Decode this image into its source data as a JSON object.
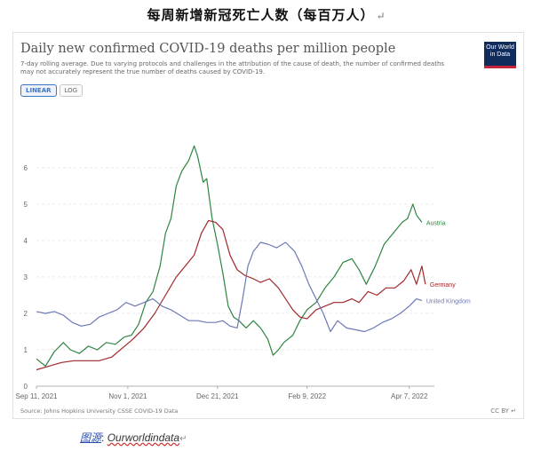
{
  "document": {
    "title": "每周新增新冠死亡人数（每百万人）",
    "return_mark": "↵",
    "caption_label": "图源",
    "caption_sep": ": ",
    "caption_source": "Ourworldindata",
    "caption_return": "↵"
  },
  "figure": {
    "logo_line1": "Our World",
    "logo_line2": "in Data",
    "tabs": [
      "LINEAR",
      "LOG"
    ],
    "active_tab": "LINEAR",
    "source": "Source: Johns Hopkins University CSSE COVID-19 Data",
    "license": "CC BY",
    "license_return": "↵"
  },
  "chart_data": {
    "type": "line",
    "title": "Daily new confirmed COVID-19 deaths per million people",
    "subtitle": "7-day rolling average. Due to varying protocols and challenges in the attribution of the cause of death, the number of confirmed deaths may not accurately represent the true number of deaths caused by COVID-19.",
    "xlabel": "",
    "ylabel": "",
    "x_range": [
      "2021-09-11",
      "2022-04-21"
    ],
    "ylim": [
      0,
      6.9
    ],
    "y_ticks": [
      0,
      1,
      2,
      3,
      4,
      5,
      6
    ],
    "x_ticks": [
      {
        "date": "2021-09-11",
        "label": "Sep 11, 2021"
      },
      {
        "date": "2021-11-01",
        "label": "Nov 1, 2021"
      },
      {
        "date": "2021-12-21",
        "label": "Dec 21, 2021"
      },
      {
        "date": "2022-02-09",
        "label": "Feb 9, 2022"
      },
      {
        "date": "2022-04-07",
        "label": "Apr 7, 2022"
      }
    ],
    "grid": "horizontal dashed",
    "legend": "inline labels at line ends",
    "series": [
      {
        "name": "Austria",
        "color": "#2e8540",
        "points": [
          [
            "2021-09-11",
            0.75
          ],
          [
            "2021-09-16",
            0.55
          ],
          [
            "2021-09-21",
            0.95
          ],
          [
            "2021-09-26",
            1.2
          ],
          [
            "2021-09-30",
            1.0
          ],
          [
            "2021-10-05",
            0.9
          ],
          [
            "2021-10-10",
            1.1
          ],
          [
            "2021-10-15",
            1.0
          ],
          [
            "2021-10-20",
            1.2
          ],
          [
            "2021-10-25",
            1.15
          ],
          [
            "2021-10-30",
            1.35
          ],
          [
            "2021-11-03",
            1.4
          ],
          [
            "2021-11-07",
            1.7
          ],
          [
            "2021-11-11",
            2.3
          ],
          [
            "2021-11-15",
            2.6
          ],
          [
            "2021-11-19",
            3.3
          ],
          [
            "2021-11-22",
            4.2
          ],
          [
            "2021-11-25",
            4.6
          ],
          [
            "2021-11-28",
            5.5
          ],
          [
            "2021-12-01",
            5.9
          ],
          [
            "2021-12-05",
            6.2
          ],
          [
            "2021-12-08",
            6.6
          ],
          [
            "2021-12-10",
            6.3
          ],
          [
            "2021-12-13",
            5.6
          ],
          [
            "2021-12-15",
            5.7
          ],
          [
            "2021-12-18",
            4.6
          ],
          [
            "2021-12-21",
            3.9
          ],
          [
            "2021-12-24",
            3.1
          ],
          [
            "2021-12-27",
            2.2
          ],
          [
            "2021-12-30",
            1.9
          ],
          [
            "2022-01-02",
            1.8
          ],
          [
            "2022-01-06",
            1.6
          ],
          [
            "2022-01-10",
            1.8
          ],
          [
            "2022-01-14",
            1.6
          ],
          [
            "2022-01-18",
            1.3
          ],
          [
            "2022-01-21",
            0.85
          ],
          [
            "2022-01-24",
            1.0
          ],
          [
            "2022-01-27",
            1.2
          ],
          [
            "2022-02-01",
            1.4
          ],
          [
            "2022-02-05",
            1.8
          ],
          [
            "2022-02-09",
            2.1
          ],
          [
            "2022-02-14",
            2.3
          ],
          [
            "2022-02-19",
            2.7
          ],
          [
            "2022-02-24",
            3.0
          ],
          [
            "2022-03-01",
            3.4
          ],
          [
            "2022-03-06",
            3.5
          ],
          [
            "2022-03-10",
            3.2
          ],
          [
            "2022-03-14",
            2.8
          ],
          [
            "2022-03-19",
            3.3
          ],
          [
            "2022-03-24",
            3.9
          ],
          [
            "2022-03-29",
            4.2
          ],
          [
            "2022-04-03",
            4.5
          ],
          [
            "2022-04-06",
            4.6
          ],
          [
            "2022-04-09",
            5.0
          ],
          [
            "2022-04-11",
            4.7
          ],
          [
            "2022-04-14",
            4.5
          ]
        ]
      },
      {
        "name": "Germany",
        "color": "#a1282a",
        "points": [
          [
            "2021-09-11",
            0.45
          ],
          [
            "2021-09-18",
            0.55
          ],
          [
            "2021-09-25",
            0.65
          ],
          [
            "2021-10-02",
            0.7
          ],
          [
            "2021-10-09",
            0.7
          ],
          [
            "2021-10-16",
            0.7
          ],
          [
            "2021-10-23",
            0.8
          ],
          [
            "2021-10-29",
            1.05
          ],
          [
            "2021-11-04",
            1.3
          ],
          [
            "2021-11-10",
            1.6
          ],
          [
            "2021-11-16",
            2.0
          ],
          [
            "2021-11-22",
            2.5
          ],
          [
            "2021-11-28",
            3.0
          ],
          [
            "2021-12-03",
            3.3
          ],
          [
            "2021-12-08",
            3.6
          ],
          [
            "2021-12-12",
            4.2
          ],
          [
            "2021-12-16",
            4.55
          ],
          [
            "2021-12-20",
            4.5
          ],
          [
            "2021-12-24",
            4.3
          ],
          [
            "2021-12-28",
            3.6
          ],
          [
            "2022-01-01",
            3.2
          ],
          [
            "2022-01-05",
            3.05
          ],
          [
            "2022-01-10",
            2.95
          ],
          [
            "2022-01-14",
            2.85
          ],
          [
            "2022-01-19",
            2.95
          ],
          [
            "2022-01-24",
            2.7
          ],
          [
            "2022-01-28",
            2.4
          ],
          [
            "2022-02-01",
            2.1
          ],
          [
            "2022-02-05",
            1.9
          ],
          [
            "2022-02-09",
            1.85
          ],
          [
            "2022-02-14",
            2.1
          ],
          [
            "2022-02-19",
            2.2
          ],
          [
            "2022-02-24",
            2.3
          ],
          [
            "2022-03-01",
            2.3
          ],
          [
            "2022-03-06",
            2.4
          ],
          [
            "2022-03-10",
            2.3
          ],
          [
            "2022-03-15",
            2.6
          ],
          [
            "2022-03-20",
            2.5
          ],
          [
            "2022-03-25",
            2.7
          ],
          [
            "2022-03-30",
            2.7
          ],
          [
            "2022-04-04",
            2.9
          ],
          [
            "2022-04-08",
            3.2
          ],
          [
            "2022-04-11",
            2.8
          ],
          [
            "2022-04-14",
            3.3
          ],
          [
            "2022-04-16",
            2.8
          ]
        ]
      },
      {
        "name": "United Kingdom",
        "color": "#6d78b5",
        "points": [
          [
            "2021-09-11",
            2.05
          ],
          [
            "2021-09-16",
            2.0
          ],
          [
            "2021-09-21",
            2.05
          ],
          [
            "2021-09-26",
            1.95
          ],
          [
            "2021-10-01",
            1.75
          ],
          [
            "2021-10-06",
            1.65
          ],
          [
            "2021-10-11",
            1.7
          ],
          [
            "2021-10-16",
            1.9
          ],
          [
            "2021-10-21",
            2.0
          ],
          [
            "2021-10-26",
            2.1
          ],
          [
            "2021-10-31",
            2.3
          ],
          [
            "2021-11-05",
            2.2
          ],
          [
            "2021-11-10",
            2.3
          ],
          [
            "2021-11-15",
            2.4
          ],
          [
            "2021-11-20",
            2.2
          ],
          [
            "2021-11-25",
            2.1
          ],
          [
            "2021-11-30",
            1.95
          ],
          [
            "2021-12-05",
            1.8
          ],
          [
            "2021-12-10",
            1.8
          ],
          [
            "2021-12-15",
            1.75
          ],
          [
            "2021-12-20",
            1.75
          ],
          [
            "2021-12-24",
            1.8
          ],
          [
            "2021-12-28",
            1.65
          ],
          [
            "2022-01-01",
            1.6
          ],
          [
            "2022-01-04",
            2.4
          ],
          [
            "2022-01-07",
            3.3
          ],
          [
            "2022-01-10",
            3.7
          ],
          [
            "2022-01-14",
            3.95
          ],
          [
            "2022-01-18",
            3.9
          ],
          [
            "2022-01-23",
            3.8
          ],
          [
            "2022-01-28",
            3.95
          ],
          [
            "2022-02-02",
            3.7
          ],
          [
            "2022-02-06",
            3.3
          ],
          [
            "2022-02-10",
            2.8
          ],
          [
            "2022-02-14",
            2.4
          ],
          [
            "2022-02-18",
            2.0
          ],
          [
            "2022-02-22",
            1.5
          ],
          [
            "2022-02-26",
            1.8
          ],
          [
            "2022-03-03",
            1.6
          ],
          [
            "2022-03-08",
            1.55
          ],
          [
            "2022-03-13",
            1.5
          ],
          [
            "2022-03-18",
            1.6
          ],
          [
            "2022-03-23",
            1.75
          ],
          [
            "2022-03-28",
            1.85
          ],
          [
            "2022-04-02",
            2.0
          ],
          [
            "2022-04-07",
            2.2
          ],
          [
            "2022-04-11",
            2.4
          ],
          [
            "2022-04-14",
            2.35
          ]
        ]
      }
    ]
  }
}
